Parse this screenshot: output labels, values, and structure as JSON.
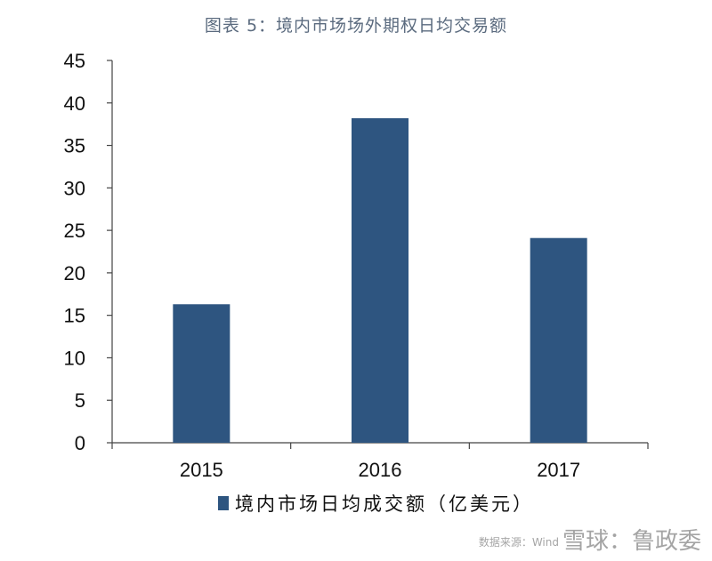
{
  "title": "图表 5：境内市场场外期权日均交易额",
  "watermark": {
    "main": "雪球：鲁政委",
    "source": "数据来源：Wind"
  },
  "colors": {
    "bar": "#2e5580",
    "axis": "#444444"
  },
  "chart_data": {
    "type": "bar",
    "title": "图表 5：境内市场场外期权日均交易额",
    "categories": [
      "2015",
      "2016",
      "2017"
    ],
    "series": [
      {
        "name": "境内市场日均成交额（亿美元）",
        "values": [
          16.3,
          38.2,
          24.1
        ]
      }
    ],
    "ylim": [
      0,
      45
    ],
    "yticks": [
      0,
      5,
      10,
      15,
      20,
      25,
      30,
      35,
      40,
      45
    ],
    "grid": false,
    "legend_position": "bottom"
  }
}
